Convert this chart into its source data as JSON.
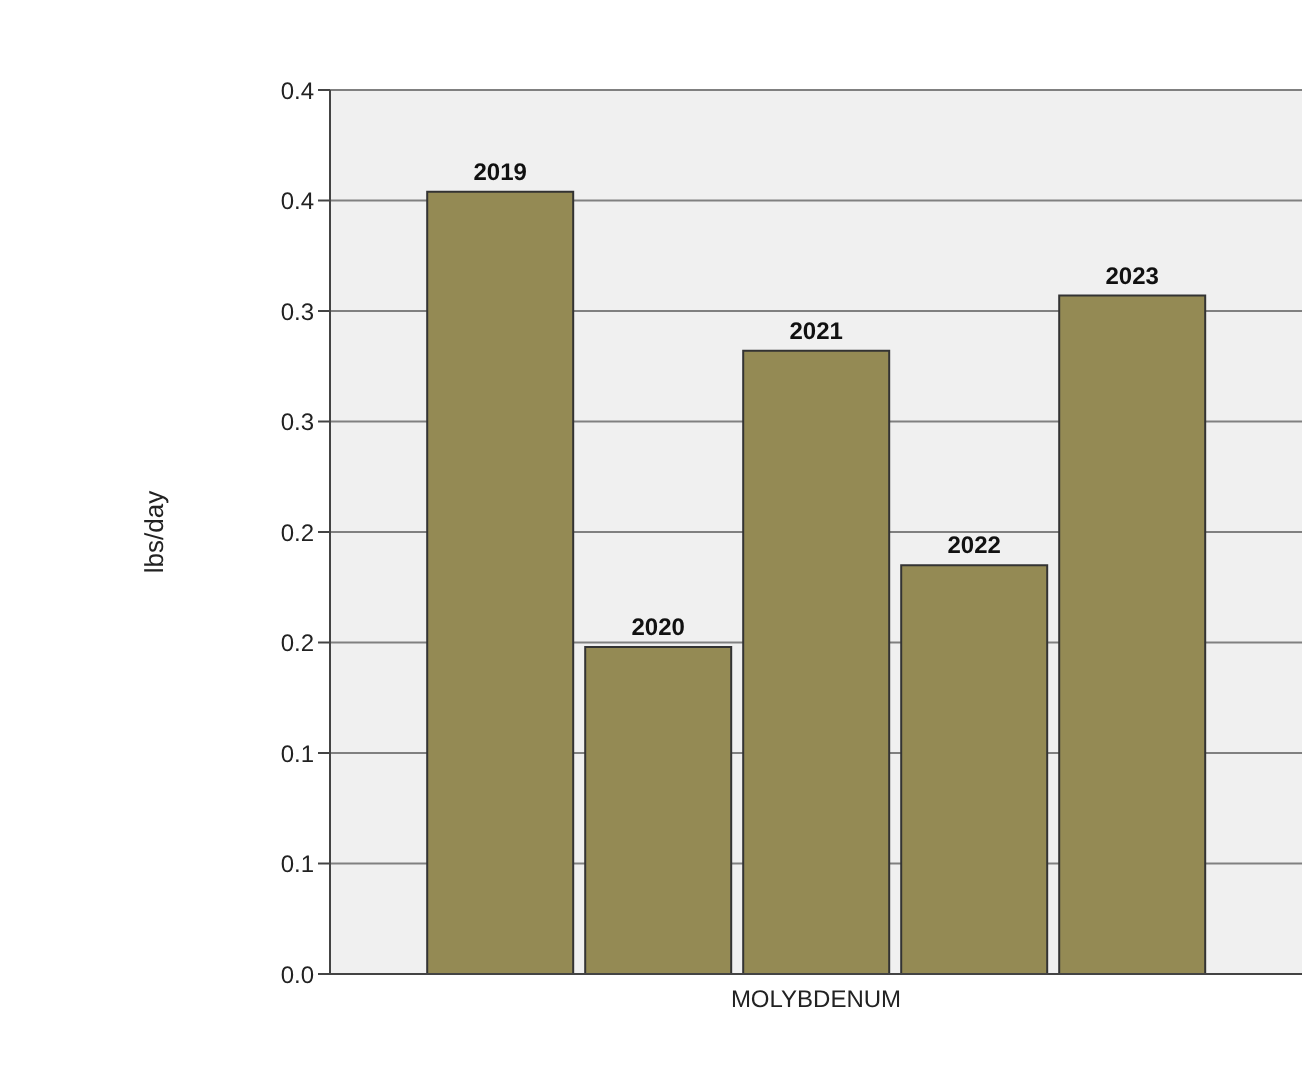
{
  "chart_data": {
    "type": "bar",
    "ylabel": "lbs/day",
    "categories": [
      "MOLYBDENUM"
    ],
    "series": [
      {
        "name": "2019",
        "color": "#948a54",
        "values": [
          0.354
        ]
      },
      {
        "name": "2020",
        "color": "#948a54",
        "values": [
          0.148
        ]
      },
      {
        "name": "2021",
        "color": "#948a54",
        "values": [
          0.282
        ]
      },
      {
        "name": "2022",
        "color": "#948a54",
        "values": [
          0.185
        ]
      },
      {
        "name": "2023",
        "color": "#948a54",
        "values": [
          0.307
        ]
      }
    ],
    "ylim": [
      0,
      0.4
    ],
    "yticks": [
      {
        "value": 0,
        "label": "0.0"
      },
      {
        "value": 0.05,
        "label": "0.1"
      },
      {
        "value": 0.1,
        "label": "0.1"
      },
      {
        "value": 0.15,
        "label": "0.2"
      },
      {
        "value": 0.2,
        "label": "0.2"
      },
      {
        "value": 0.25,
        "label": "0.3"
      },
      {
        "value": 0.3,
        "label": "0.3"
      },
      {
        "value": 0.35,
        "label": "0.4"
      },
      {
        "value": 0.4,
        "label": "0.4"
      }
    ],
    "grid": "y",
    "legend": false
  }
}
